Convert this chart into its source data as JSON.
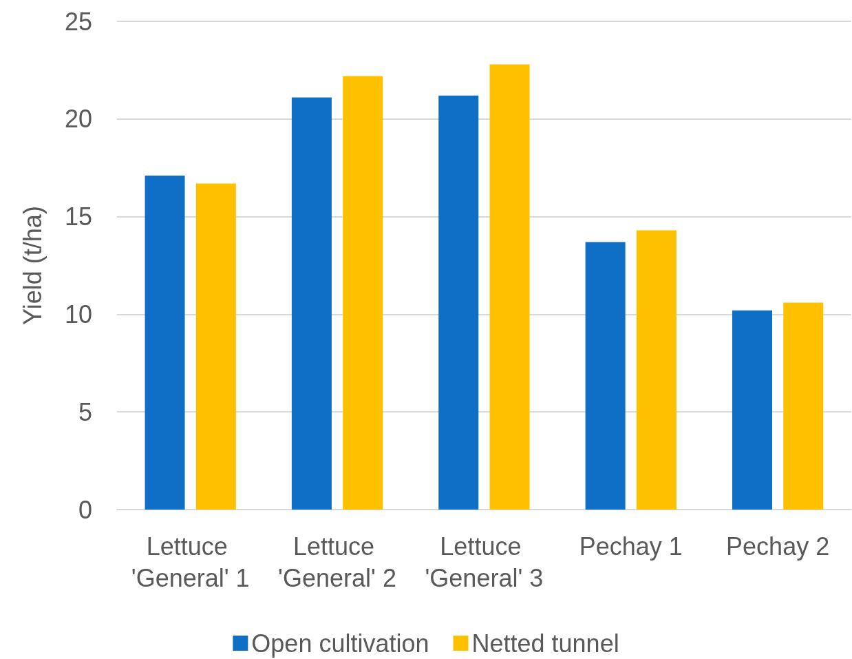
{
  "chart_data": {
    "type": "bar",
    "ylabel": "Yield (t/ha)",
    "categories": [
      "Lettuce 'General' 1",
      "Lettuce 'General' 2",
      "Lettuce 'General' 3",
      "Pechay 1",
      "Pechay 2"
    ],
    "series": [
      {
        "name": "Open cultivation",
        "color": "#0f6fc6",
        "values": [
          17.1,
          21.1,
          21.2,
          13.7,
          10.2
        ]
      },
      {
        "name": "Netted tunnel",
        "color": "#ffc000",
        "values": [
          16.7,
          22.2,
          22.8,
          14.3,
          10.6
        ]
      }
    ],
    "ylim": [
      0,
      25
    ],
    "yticks": [
      0,
      5,
      10,
      15,
      20,
      25
    ],
    "grid": "y",
    "legend": "bottom"
  }
}
